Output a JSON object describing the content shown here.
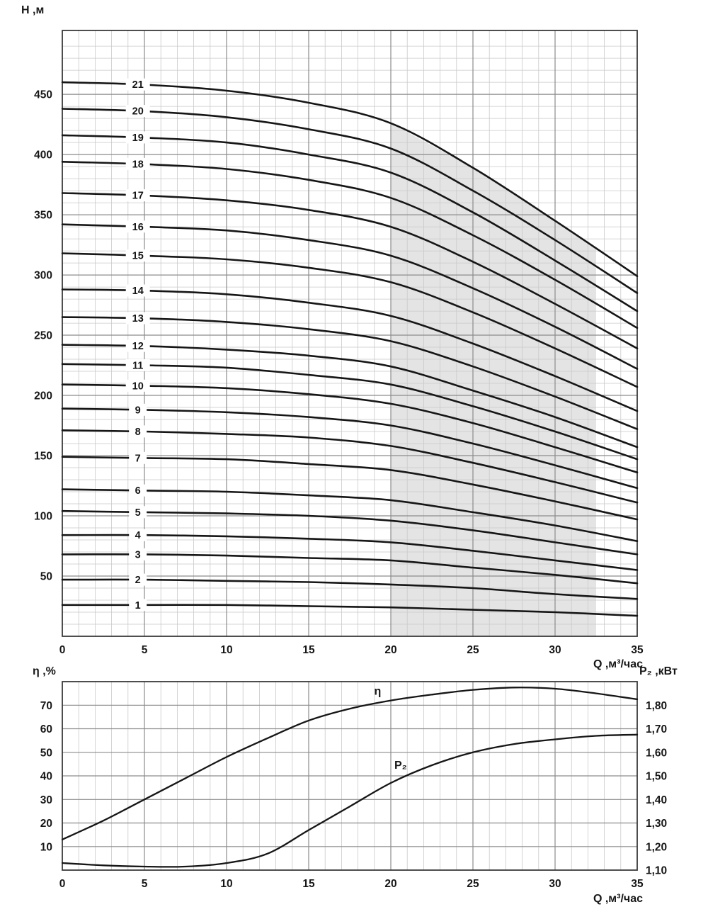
{
  "page": {
    "background": "#ffffff",
    "text_color": "#161616"
  },
  "chart_data": [
    {
      "type": "line",
      "ylabel": "H ,м",
      "xlabel": "Q ,м³/час",
      "xlim": [
        0,
        35
      ],
      "ylim": [
        0,
        503
      ],
      "x_major_ticks": [
        0,
        5,
        10,
        15,
        20,
        25,
        30,
        35
      ],
      "x_minor_step": 1,
      "y_major_ticks": [
        50,
        100,
        150,
        200,
        250,
        300,
        350,
        400,
        450
      ],
      "y_minor_step": 10,
      "grid": true,
      "legend": "none",
      "shaded_region": {
        "x_start": 20,
        "x_end": 32.5,
        "fill": "#e4e4e4"
      },
      "label_x": 4.6,
      "x": [
        0,
        5,
        10,
        15,
        20,
        25,
        30,
        35
      ],
      "series": [
        {
          "name": "21",
          "values": [
            460,
            458,
            453,
            443,
            426,
            389,
            345,
            299
          ]
        },
        {
          "name": "20",
          "values": [
            438,
            436,
            431,
            421,
            405,
            370,
            329,
            285
          ]
        },
        {
          "name": "19",
          "values": [
            416,
            414,
            410,
            400,
            385,
            352,
            312,
            270
          ]
        },
        {
          "name": "18",
          "values": [
            394,
            392,
            388,
            379,
            364,
            333,
            296,
            256
          ]
        },
        {
          "name": "17",
          "values": [
            368,
            366,
            362,
            354,
            340,
            311,
            276,
            239
          ]
        },
        {
          "name": "16",
          "values": [
            342,
            340,
            337,
            329,
            316,
            289,
            257,
            222
          ]
        },
        {
          "name": "15",
          "values": [
            318,
            316,
            313,
            306,
            294,
            269,
            239,
            207
          ]
        },
        {
          "name": "14",
          "values": [
            288,
            287,
            284,
            277,
            266,
            243,
            216,
            187
          ]
        },
        {
          "name": "13",
          "values": [
            265,
            264,
            261,
            255,
            245,
            224,
            199,
            172
          ]
        },
        {
          "name": "12",
          "values": [
            242,
            241,
            238,
            233,
            224,
            204,
            182,
            157
          ]
        },
        {
          "name": "11",
          "values": [
            226,
            225,
            223,
            217,
            209,
            191,
            170,
            147
          ]
        },
        {
          "name": "10",
          "values": [
            209,
            208,
            206,
            201,
            193,
            177,
            157,
            136
          ]
        },
        {
          "name": "9",
          "values": [
            189,
            188,
            186,
            182,
            175,
            160,
            142,
            123
          ]
        },
        {
          "name": "8",
          "values": [
            171,
            170,
            168,
            165,
            158,
            144,
            128,
            111
          ]
        },
        {
          "name": "7",
          "values": [
            149,
            148,
            147,
            143,
            138,
            126,
            112,
            97
          ]
        },
        {
          "name": "6",
          "values": [
            122,
            121,
            120,
            117,
            113,
            103,
            92,
            79
          ]
        },
        {
          "name": "5",
          "values": [
            104,
            103,
            102,
            100,
            96,
            88,
            78,
            68
          ]
        },
        {
          "name": "4",
          "values": [
            84,
            84,
            83,
            81,
            78,
            71,
            63,
            55
          ]
        },
        {
          "name": "3",
          "values": [
            68,
            68,
            67,
            65,
            63,
            57,
            51,
            44
          ]
        },
        {
          "name": "2",
          "values": [
            47,
            47,
            46,
            45,
            43,
            40,
            35,
            31
          ]
        },
        {
          "name": "1",
          "values": [
            26,
            26,
            26,
            25,
            24,
            22,
            20,
            17
          ]
        }
      ]
    },
    {
      "type": "line",
      "ylabel_left": "η ,%",
      "ylabel_right": "P₂ ,кВт",
      "xlabel": "Q ,м³/час",
      "xlim": [
        0,
        35
      ],
      "ylim_left": [
        0,
        80
      ],
      "ylim_right": [
        1.1,
        1.9
      ],
      "x_major_ticks": [
        0,
        5,
        10,
        15,
        20,
        25,
        30,
        35
      ],
      "x_minor_step": 1,
      "y_left_ticks": [
        10,
        20,
        30,
        40,
        50,
        60,
        70
      ],
      "y_right_ticks": [
        {
          "label": "1,10",
          "value": 1.1
        },
        {
          "label": "1,20",
          "value": 1.2
        },
        {
          "label": "1,30",
          "value": 1.3
        },
        {
          "label": "1,40",
          "value": 1.4
        },
        {
          "label": "1,50",
          "value": 1.5
        },
        {
          "label": "1,60",
          "value": 1.6
        },
        {
          "label": "1,70",
          "value": 1.7
        },
        {
          "label": "1,80",
          "value": 1.8
        }
      ],
      "x": [
        0,
        2.5,
        5,
        7.5,
        10,
        12.5,
        15,
        17.5,
        20,
        22.5,
        25,
        27.5,
        30,
        32.5,
        35
      ],
      "series": [
        {
          "name": "η",
          "axis": "left",
          "label_at": [
            19.2,
            74.5
          ],
          "values": [
            13,
            21,
            30,
            39,
            48,
            56,
            63.5,
            68.5,
            72,
            74.5,
            76.5,
            77.5,
            77,
            75,
            72.5
          ]
        },
        {
          "name": "P₂",
          "axis": "right",
          "label_at": [
            20.6,
            1.53
          ],
          "values": [
            1.13,
            1.12,
            1.115,
            1.115,
            1.13,
            1.17,
            1.27,
            1.37,
            1.47,
            1.545,
            1.6,
            1.635,
            1.655,
            1.67,
            1.675
          ]
        }
      ]
    }
  ]
}
